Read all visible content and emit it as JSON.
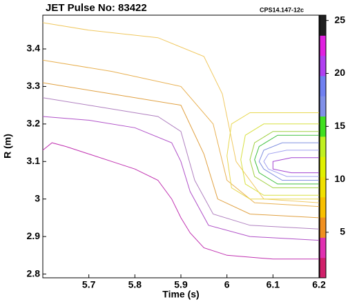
{
  "chart_data": {
    "type": "contour",
    "title": "JET Pulse No: 83422",
    "annotation": "CPS14.147-12c",
    "x_label": "Time (s)",
    "y_label": "R (m)",
    "xlim": [
      5.6,
      6.2
    ],
    "xticks": [
      5.7,
      5.8,
      5.9,
      6.0,
      6.1,
      6.2
    ],
    "ylim": [
      2.79,
      3.49
    ],
    "yticks": [
      2.8,
      2.9,
      3.0,
      3.1,
      3.2,
      3.3,
      3.4
    ],
    "colorbar": {
      "zlim": [
        0.7,
        25.5
      ],
      "ticks": [
        5,
        10,
        15,
        20,
        25
      ],
      "colors": [
        "#d0206a",
        "#e030b0",
        "#f09020",
        "#f8c000",
        "#f0e000",
        "#e0f000",
        "#c0f020",
        "#40e020",
        "#8090e8",
        "#7080f0",
        "#b040f0",
        "#e020e0",
        "#202020"
      ]
    },
    "series": [
      {
        "color": "#c030b0",
        "x": [
          5.6,
          5.62,
          5.65,
          5.7,
          5.75,
          5.8,
          5.85,
          5.88,
          5.9,
          5.92,
          5.95,
          6.0,
          6.1,
          6.2
        ],
        "y": [
          3.13,
          3.15,
          3.14,
          3.12,
          3.1,
          3.08,
          3.05,
          3.0,
          2.95,
          2.91,
          2.87,
          2.85,
          2.84,
          2.84
        ]
      },
      {
        "color": "#b050c8",
        "x": [
          5.6,
          5.7,
          5.8,
          5.88,
          5.9,
          5.92,
          5.96,
          6.05,
          6.2
        ],
        "y": [
          3.22,
          3.21,
          3.19,
          3.15,
          3.1,
          3.02,
          2.93,
          2.9,
          2.89
        ]
      },
      {
        "color": "#b080c0",
        "x": [
          5.6,
          5.7,
          5.85,
          5.9,
          5.93,
          5.97,
          6.05,
          6.2
        ],
        "y": [
          3.27,
          3.25,
          3.22,
          3.18,
          3.05,
          2.96,
          2.93,
          2.92
        ]
      },
      {
        "color": "#e0a040",
        "x": [
          5.6,
          5.75,
          5.9,
          5.95,
          5.98,
          6.05,
          6.2
        ],
        "y": [
          3.31,
          3.28,
          3.25,
          3.12,
          3.0,
          2.96,
          2.95
        ]
      },
      {
        "color": "#e8b050",
        "x": [
          5.6,
          5.75,
          5.9,
          5.97,
          6.0,
          6.06,
          6.2
        ],
        "y": [
          3.37,
          3.34,
          3.3,
          3.2,
          3.05,
          2.99,
          2.98
        ]
      },
      {
        "color": "#f0c860",
        "x": [
          5.6,
          5.7,
          5.85,
          5.95,
          5.99,
          6.02,
          6.08,
          6.2
        ],
        "y": [
          3.47,
          3.45,
          3.43,
          3.38,
          3.28,
          3.1,
          3.0,
          2.99
        ]
      },
      {
        "color": "#e8d850",
        "x": [
          6.2,
          6.05,
          6.01,
          6.0,
          6.01,
          6.05,
          6.2
        ],
        "y": [
          3.23,
          3.23,
          3.2,
          3.115,
          3.03,
          3.0,
          3.0
        ]
      },
      {
        "color": "#d8e040",
        "x": [
          6.2,
          6.08,
          6.04,
          6.03,
          6.04,
          6.08,
          6.2
        ],
        "y": [
          3.2,
          3.2,
          3.17,
          3.105,
          3.04,
          3.01,
          3.01
        ]
      },
      {
        "color": "#a0d040",
        "x": [
          6.2,
          6.1,
          6.06,
          6.05,
          6.06,
          6.1,
          6.2
        ],
        "y": [
          3.18,
          3.18,
          3.15,
          3.105,
          3.06,
          3.03,
          3.03
        ]
      },
      {
        "color": "#40c040",
        "x": [
          6.2,
          6.11,
          6.07,
          6.06,
          6.07,
          6.11,
          6.2
        ],
        "y": [
          3.17,
          3.17,
          3.14,
          3.105,
          3.07,
          3.04,
          3.04
        ]
      },
      {
        "color": "#8090e0",
        "x": [
          6.2,
          6.12,
          6.08,
          6.07,
          6.08,
          6.12,
          6.2
        ],
        "y": [
          3.15,
          3.15,
          3.13,
          3.1,
          3.08,
          3.05,
          3.05
        ]
      },
      {
        "color": "#a0a0f0",
        "x": [
          6.2,
          6.13,
          6.09,
          6.08,
          6.09,
          6.13,
          6.2
        ],
        "y": [
          3.13,
          3.13,
          3.12,
          3.1,
          3.08,
          3.06,
          3.06
        ]
      },
      {
        "color": "#a040d0",
        "x": [
          6.2,
          6.14,
          6.1,
          6.1,
          6.14,
          6.2
        ],
        "y": [
          3.11,
          3.11,
          3.1,
          3.08,
          3.07,
          3.07
        ]
      }
    ]
  }
}
